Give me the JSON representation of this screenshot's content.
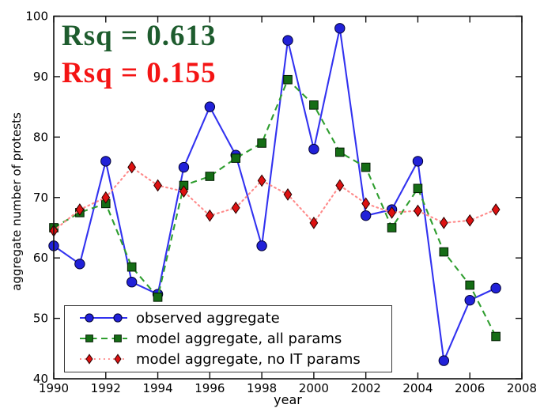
{
  "chart_data": {
    "type": "line",
    "title": "",
    "xlabel": "year",
    "ylabel": "aggregate number of protests",
    "xlim": [
      1990,
      2008
    ],
    "ylim": [
      40,
      100
    ],
    "x_ticks": [
      1990,
      1992,
      1994,
      1996,
      1998,
      2000,
      2002,
      2004,
      2006,
      2008
    ],
    "y_ticks": [
      40,
      50,
      60,
      70,
      80,
      90,
      100
    ],
    "grid": false,
    "legend_position": "lower left",
    "x": [
      1990,
      1991,
      1992,
      1993,
      1994,
      1995,
      1996,
      1997,
      1998,
      1999,
      2000,
      2001,
      2002,
      2003,
      2004,
      2005,
      2006,
      2007
    ],
    "series": [
      {
        "name": "observed aggregate",
        "marker": "circle",
        "line_style": "solid",
        "line_color": "#3232f0",
        "marker_color": "#2121d8",
        "marker_edge": "#000033",
        "values": [
          62,
          59,
          76,
          56,
          54,
          75,
          85,
          77,
          62,
          96,
          78,
          98,
          67,
          68,
          76,
          43,
          53,
          55
        ]
      },
      {
        "name": "model aggregate, all params",
        "marker": "square",
        "line_style": "dashed",
        "line_color": "#2f9e2f",
        "marker_color": "#156d15",
        "marker_edge": "#001a00",
        "values": [
          65,
          67.5,
          69,
          58.5,
          53.5,
          72,
          73.5,
          76.5,
          79,
          89.5,
          85.3,
          77.5,
          75,
          65,
          71.5,
          61,
          55.5,
          47
        ]
      },
      {
        "name": "model aggregate, no IT params",
        "marker": "diamond",
        "line_style": "dotted",
        "line_color": "#ff8a8a",
        "marker_color": "#dd1111",
        "marker_edge": "#2b0000",
        "values": [
          64.5,
          68,
          70,
          75,
          72,
          71,
          67,
          68.3,
          72.8,
          70.5,
          65.8,
          72,
          69,
          67.5,
          67.8,
          65.8,
          66.2,
          68
        ]
      }
    ],
    "annotations": [
      {
        "text": "Rsq = 0.613",
        "color": "#1e5c2e"
      },
      {
        "text": "Rsq = 0.155",
        "color": "#f41414"
      }
    ]
  }
}
